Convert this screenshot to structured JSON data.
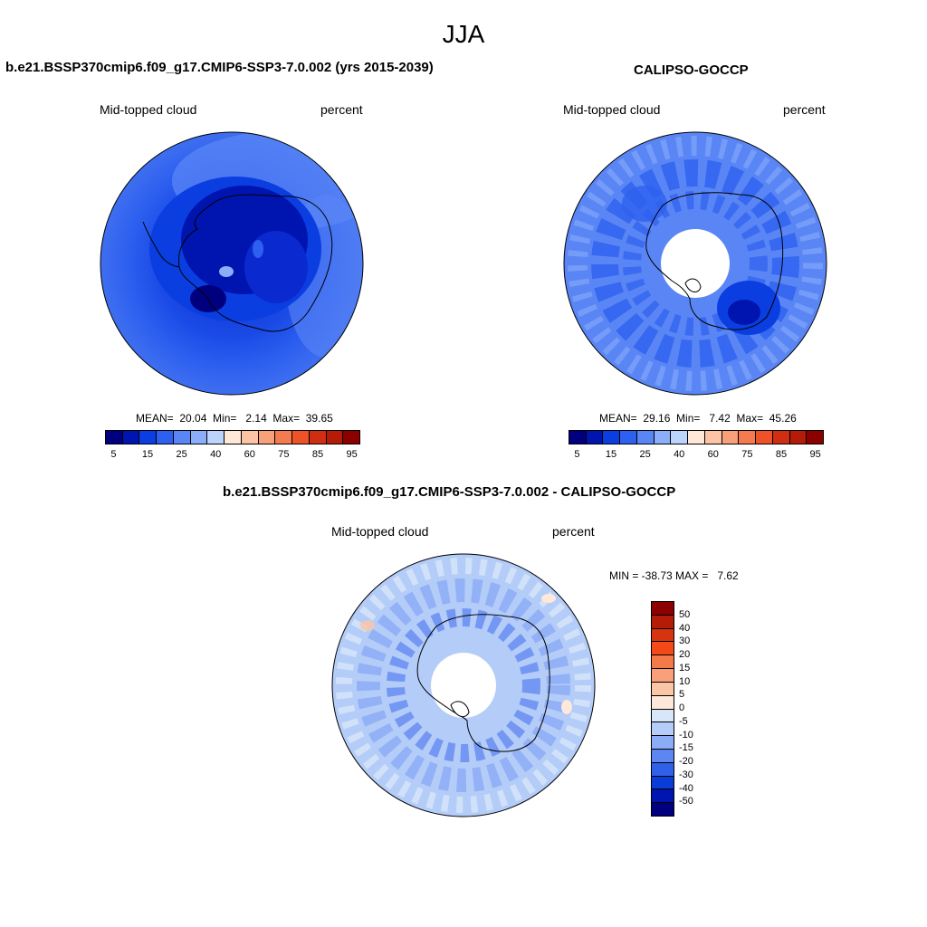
{
  "page": {
    "season": "JJA"
  },
  "panels": {
    "model": {
      "title": "b.e21.BSSP370cmip6.f09_g17.CMIP6-SSP3-7.0.002 (yrs 2015-2039)",
      "left_label": "Mid-topped cloud",
      "right_label": "percent",
      "stats": "MEAN=  20.04  Min=   2.14  Max=  39.65"
    },
    "obs": {
      "title": "CALIPSO-GOCCP",
      "left_label": "Mid-topped cloud",
      "right_label": "percent",
      "stats": "MEAN=  29.16  Min=   7.42  Max=  45.26"
    },
    "diff": {
      "title": "b.e21.BSSP370cmip6.f09_g17.CMIP6-SSP3-7.0.002 - CALIPSO-GOCCP",
      "left_label": "Mid-topped cloud",
      "right_label": "percent",
      "stats": "MIN = -38.73 MAX =   7.62"
    }
  },
  "colorbar_abs": {
    "colors": [
      "#00007f",
      "#0014b0",
      "#0a3ee0",
      "#2e60f0",
      "#5a86f5",
      "#8caefa",
      "#bcd4fc",
      "#ffe8d8",
      "#fcc4a4",
      "#f7a07a",
      "#f47a50",
      "#ee5228",
      "#d02e12",
      "#b41c08",
      "#8c0000"
    ],
    "labels": [
      "5",
      "15",
      "25",
      "40",
      "60",
      "75",
      "85",
      "95"
    ]
  },
  "colorbar_diff": {
    "colors": [
      "#8c0000",
      "#b41c08",
      "#d63410",
      "#f44a18",
      "#f57a4a",
      "#f9a07a",
      "#fbc6a6",
      "#fde8da",
      "#d8e6fa",
      "#b4ccf8",
      "#8cacf6",
      "#5e86f2",
      "#2e60ea",
      "#0a3cd8",
      "#0014b0",
      "#00007f"
    ],
    "labels": [
      "50",
      "40",
      "30",
      "20",
      "15",
      "10",
      "5",
      "0",
      "-5",
      "-10",
      "-15",
      "-20",
      "-30",
      "-40",
      "-50"
    ]
  },
  "map": {
    "ocean_color": "#3f6fef",
    "obs_ocean_color": "#5a86f5",
    "diff_ocean_color": "#b4ccf8",
    "land_dark": "#0a3ee0",
    "coast": "#000000"
  }
}
